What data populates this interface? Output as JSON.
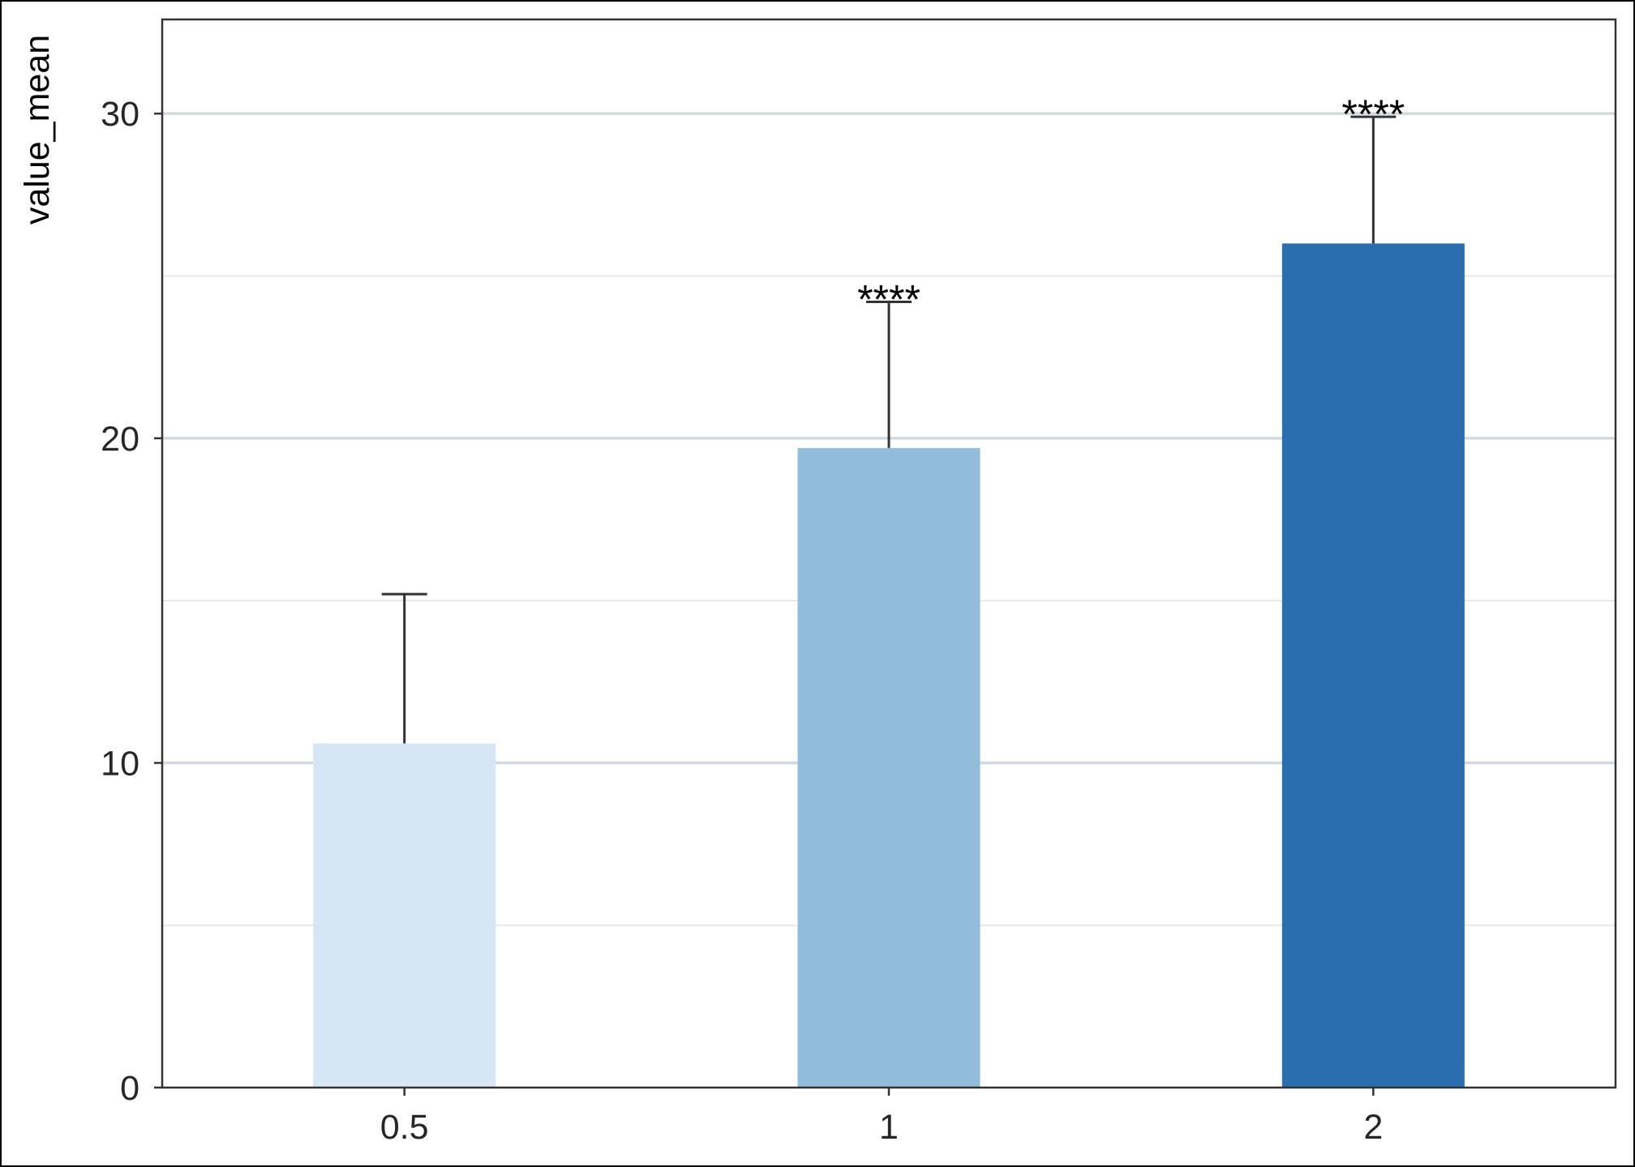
{
  "chart_data": {
    "type": "bar",
    "categories": [
      "0.5",
      "1",
      "2"
    ],
    "values": [
      10.6,
      19.7,
      26.0
    ],
    "error_upper": [
      15.2,
      24.2,
      29.9
    ],
    "significance": [
      "",
      "****",
      "****"
    ],
    "colors": [
      "#d6e6f4",
      "#91bdda",
      "#2a6eb0"
    ],
    "title": "",
    "xlabel": "",
    "ylabel": "value_mean",
    "ylim": [
      0,
      32.9
    ],
    "yticks": [
      0,
      10,
      20,
      30
    ],
    "yticks_minor": [
      5,
      15,
      25
    ],
    "grid": true,
    "legend": "none"
  }
}
